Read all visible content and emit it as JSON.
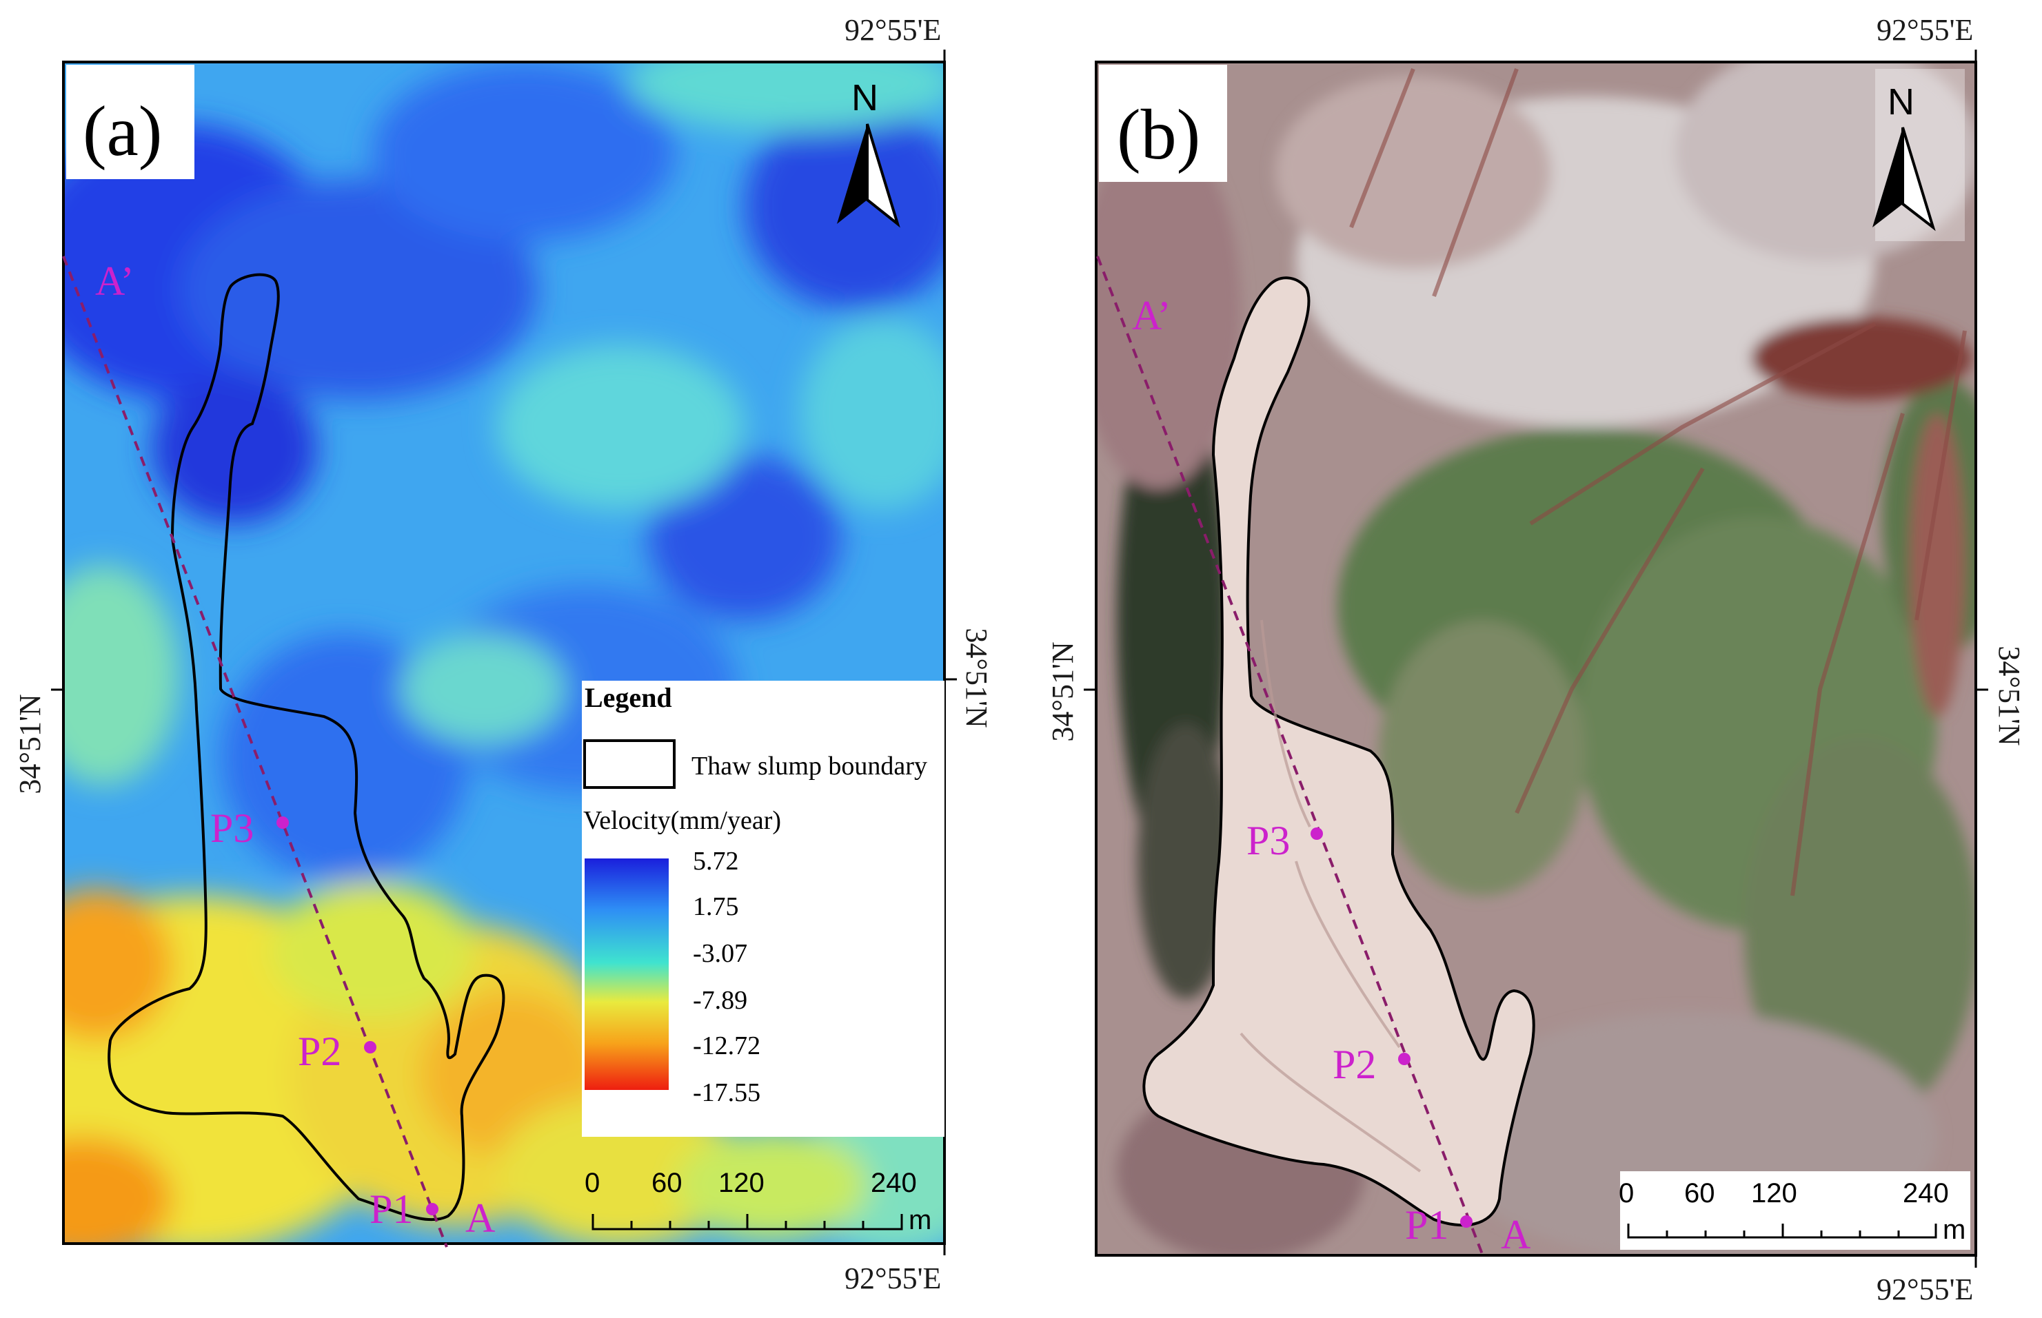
{
  "panel_a": {
    "label": "(a)",
    "coord_top_right": "92°55'E",
    "coord_bottom_right": "92°55'E",
    "coord_left": "34°51'N",
    "coord_right": "34°51'N",
    "north": "N",
    "profile_start": "A",
    "profile_end": "A’",
    "points": [
      "P1",
      "P2",
      "P3"
    ],
    "legend": {
      "title": "Legend",
      "boundary_label": "Thaw slump boundary",
      "velocity_label": "Velocity(mm/year)",
      "ticks": [
        "5.72",
        "1.75",
        "-3.07",
        "-7.89",
        "-12.72",
        "-17.55"
      ],
      "colors": [
        "#1f2be0",
        "#2d8ef5",
        "#3fe0d0",
        "#e8e840",
        "#f7a21a",
        "#ee2a14"
      ]
    },
    "scale": {
      "ticks": [
        "0",
        "60",
        "120",
        "240"
      ],
      "unit": "m"
    }
  },
  "panel_b": {
    "label": "(b)",
    "coord_top_right": "92°55'E",
    "coord_bottom_right": "92°55'E",
    "coord_left": "34°51'N",
    "coord_right": "34°51'N",
    "north": "N",
    "profile_start": "A",
    "profile_end": "A’",
    "points": [
      "P1",
      "P2",
      "P3"
    ],
    "scale": {
      "ticks": [
        "0",
        "60",
        "120",
        "240"
      ],
      "unit": "m"
    }
  },
  "colors": {
    "profile_line": "#8a1d6a",
    "point_marker": "#cc22cc",
    "boundary": "#000000"
  }
}
